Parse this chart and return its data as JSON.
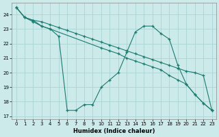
{
  "xlabel": "Humidex (Indice chaleur)",
  "bg_color": "#cceaea",
  "grid_color": "#aad4d4",
  "line_color": "#1a7a6e",
  "xlim": [
    -0.5,
    23.5
  ],
  "ylim": [
    16.8,
    24.8
  ],
  "xticks": [
    0,
    1,
    2,
    3,
    4,
    5,
    6,
    7,
    8,
    9,
    10,
    11,
    12,
    13,
    14,
    15,
    16,
    17,
    18,
    19,
    20,
    21,
    22,
    23
  ],
  "yticks": [
    17,
    18,
    19,
    20,
    21,
    22,
    23,
    24
  ],
  "series": [
    {
      "x": [
        0,
        1,
        2,
        3,
        4,
        5,
        6,
        7,
        8,
        9,
        10,
        11,
        12,
        13,
        14,
        15,
        16,
        17,
        18,
        19,
        20,
        21,
        22,
        23
      ],
      "y": [
        24.5,
        23.8,
        23.6,
        23.5,
        23.3,
        23.1,
        22.9,
        22.7,
        22.5,
        22.3,
        22.1,
        21.9,
        21.7,
        21.5,
        21.3,
        21.1,
        20.9,
        20.7,
        20.5,
        20.3,
        20.1,
        20.0,
        19.8,
        17.4
      ]
    },
    {
      "x": [
        0,
        1,
        2,
        3,
        4,
        5,
        6,
        7,
        8,
        9,
        10,
        11,
        12,
        13,
        14,
        15,
        16,
        17,
        18,
        19,
        20,
        21,
        22,
        23
      ],
      "y": [
        24.5,
        23.8,
        23.6,
        23.2,
        23.0,
        22.5,
        17.4,
        17.4,
        17.8,
        17.8,
        19.0,
        19.5,
        20.0,
        21.4,
        22.8,
        23.2,
        23.2,
        22.7,
        22.3,
        20.5,
        19.2,
        18.5,
        17.9,
        17.4
      ]
    },
    {
      "x": [
        0,
        1,
        2,
        3,
        4,
        10,
        11,
        12,
        13,
        14,
        15,
        16,
        17,
        18,
        19,
        20,
        21,
        22,
        23
      ],
      "y": [
        24.5,
        23.8,
        23.5,
        23.2,
        23.0,
        21.7,
        21.5,
        21.3,
        21.0,
        20.8,
        20.6,
        20.4,
        20.2,
        19.8,
        19.5,
        19.2,
        18.5,
        17.9,
        17.4
      ]
    }
  ]
}
